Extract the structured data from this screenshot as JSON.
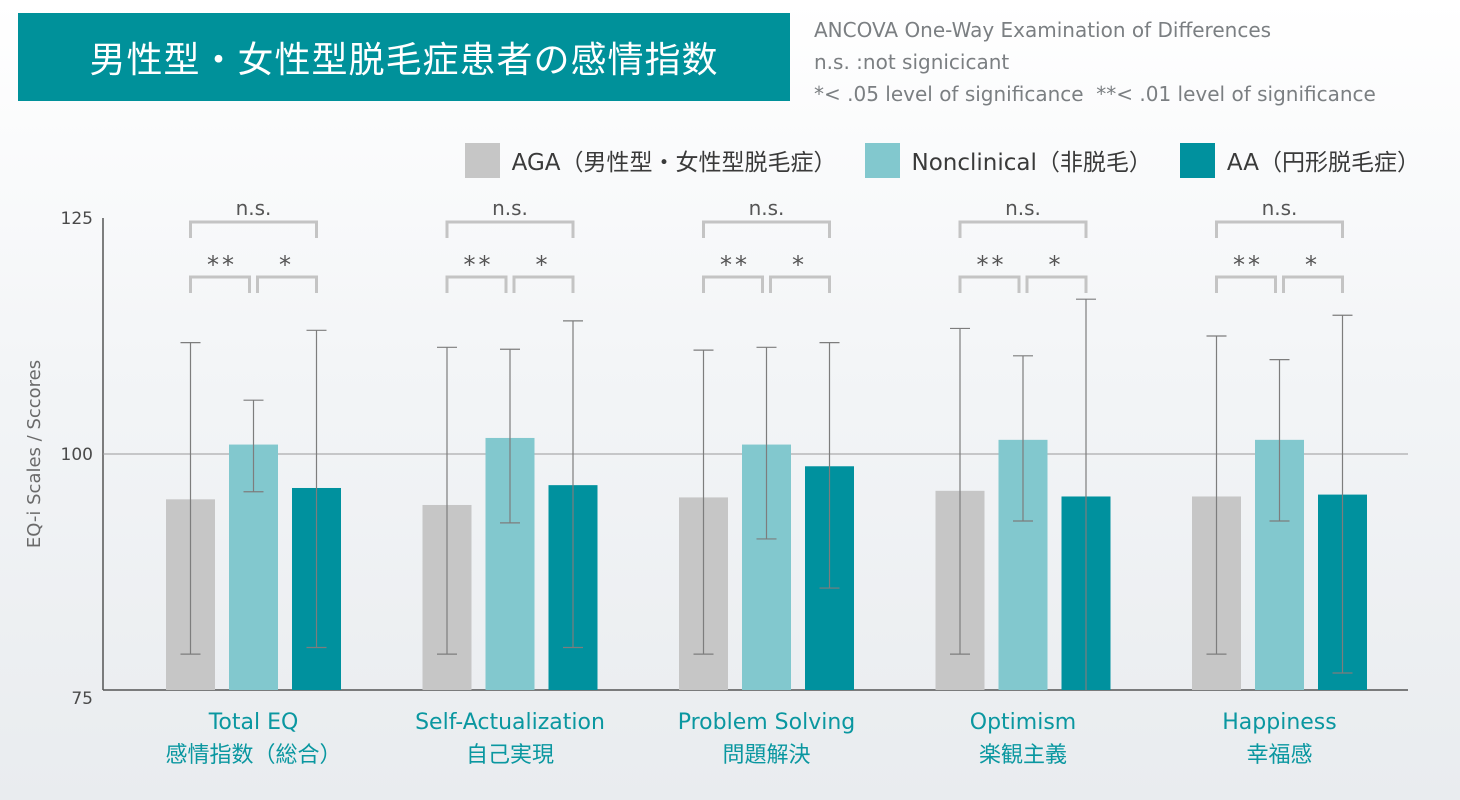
{
  "title": "男性型・女性型脱毛症患者の感情指数",
  "notes": [
    "ANCOVA One-Way Examination of Differences",
    "n.s. :not signicicant",
    "*< .05 level of significance  **< .01 level of significance"
  ],
  "colors": {
    "title_bg": "#00919a",
    "AGA": "#c6c6c6",
    "Nonclinical": "#82c8ce",
    "AA": "#00919e",
    "category_text": "#0a97a0",
    "bracket": "#c4c4c4",
    "error_bar": "#7d7d7d"
  },
  "chart_data": {
    "type": "bar",
    "ylabel": "EQ-i Scales / Sccores",
    "ylim": [
      75,
      125
    ],
    "yticks": [
      "125",
      "100",
      "75"
    ],
    "reference_line": 100,
    "categories": [
      {
        "en": "Total EQ",
        "ja": "感情指数（総合）"
      },
      {
        "en": "Self-Actualization",
        "ja": "自己実現"
      },
      {
        "en": "Problem Solving",
        "ja": "問題解決"
      },
      {
        "en": "Optimism",
        "ja": "楽観主義"
      },
      {
        "en": "Happiness",
        "ja": "幸福感"
      }
    ],
    "series": [
      {
        "name": "AGA（男性型・女性型脱毛症）",
        "color_key": "AGA",
        "values": [
          95.2,
          94.6,
          95.4,
          96.1,
          95.5
        ],
        "err_low": [
          78.8,
          78.8,
          78.8,
          78.8,
          78.8
        ],
        "err_high": [
          111.8,
          111.3,
          111.0,
          113.3,
          112.5
        ]
      },
      {
        "name": "Nonclinical（非脱毛）",
        "color_key": "Nonclinical",
        "values": [
          101.0,
          101.7,
          101.0,
          101.5,
          101.5
        ],
        "err_low": [
          96.0,
          92.7,
          91.0,
          92.9,
          92.9
        ],
        "err_high": [
          105.7,
          111.1,
          111.3,
          110.4,
          110.0
        ]
      },
      {
        "name": "AA（円形脱毛症）",
        "color_key": "AA",
        "values": [
          96.4,
          96.7,
          98.7,
          95.5,
          95.7
        ],
        "err_low": [
          79.5,
          79.5,
          85.8,
          75.0,
          76.8
        ],
        "err_high": [
          113.1,
          114.1,
          111.8,
          116.4,
          114.7
        ]
      }
    ],
    "significance": [
      {
        "top": "n.s.",
        "left": "**",
        "right": "*"
      },
      {
        "top": "n.s.",
        "left": "**",
        "right": "*"
      },
      {
        "top": "n.s.",
        "left": "**",
        "right": "*"
      },
      {
        "top": "n.s.",
        "left": "**",
        "right": "*"
      },
      {
        "top": "n.s.",
        "left": "**",
        "right": "*"
      }
    ]
  }
}
